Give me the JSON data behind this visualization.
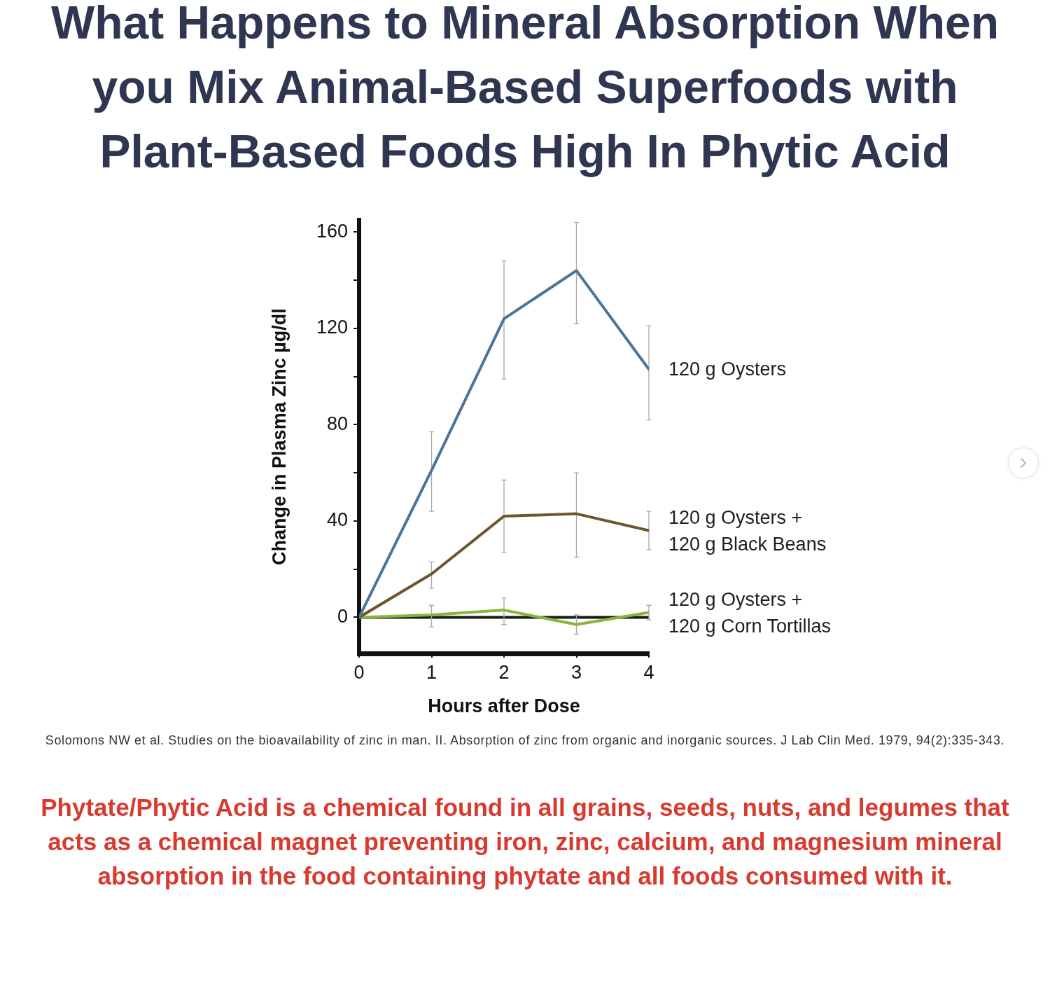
{
  "chart_data": {
    "type": "line",
    "title": "What Happens to Mineral Absorption When you Mix Animal-Based Superfoods with Plant-Based Foods High In Phytic Acid",
    "xlabel": "Hours after Dose",
    "ylabel": "Change in Plasma Zinc µg/dl",
    "x": [
      0,
      1,
      2,
      3,
      4
    ],
    "xlim": [
      0,
      4
    ],
    "xticks": [
      0,
      1,
      2,
      3,
      4
    ],
    "ylim": [
      -15,
      165
    ],
    "yticks": [
      0,
      {
        "value": 20,
        "label": null
      },
      40,
      {
        "value": 60,
        "label": null
      },
      80,
      {
        "value": 100,
        "label": null
      },
      120,
      {
        "value": 140,
        "label": null
      },
      160
    ],
    "marker": "none",
    "line_style": "solid",
    "series": [
      {
        "name": "120 g Oysters",
        "color": "#4a7499",
        "values": [
          0,
          61,
          124,
          144,
          103
        ],
        "errors": [
          null,
          [
            44,
            77
          ],
          [
            99,
            148
          ],
          [
            122,
            164
          ],
          [
            82,
            121
          ]
        ]
      },
      {
        "name": "120 g Oysters +\n120 g Black Beans",
        "color": "#6e5530",
        "values": [
          0,
          18,
          42,
          43,
          36
        ],
        "errors": [
          null,
          [
            12,
            23
          ],
          [
            27,
            57
          ],
          [
            25,
            60
          ],
          [
            28,
            44
          ]
        ]
      },
      {
        "name": "120 g Oysters +\n120 g Corn Tortillas",
        "color": "#8db33c",
        "values": [
          0,
          1,
          3,
          -3,
          2
        ],
        "errors": [
          null,
          [
            -4,
            5
          ],
          [
            -3,
            8
          ],
          [
            -7,
            1
          ],
          [
            -1,
            5
          ]
        ]
      }
    ],
    "ref_lines": [
      {
        "axis": "y",
        "value": 0,
        "color": "#1a1a1a"
      }
    ],
    "annotations": [
      "Solomons NW et al. Studies on the bioavailability of zinc in man. II. Absorption of zinc from organic and inorganic sources. J Lab Clin Med. 1979, 94(2):335-343.",
      "Phytate/Phytic Acid is a chemical found in all grains, seeds, nuts, and legumes that acts as a chemical magnet preventing iron, zinc, calcium, and magnesium mineral absorption in the food containing phytate and all foods consumed with it."
    ]
  }
}
